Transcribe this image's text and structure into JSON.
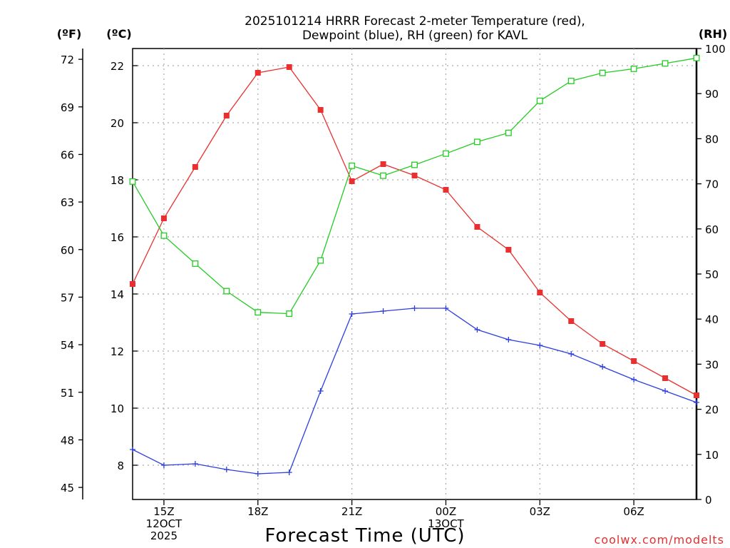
{
  "title_line1": "2025101214 HRRR Forecast 2-meter Temperature (red),",
  "title_line2": "Dewpoint (blue), RH (green) for KAVL",
  "unit_f": "(ºF)",
  "unit_c": "(ºC)",
  "unit_rh": "(RH)",
  "x_axis_label": "Forecast Time (UTC)",
  "credit": "coolwx.com/modelts",
  "colors": {
    "temperature": "#e83030",
    "dewpoint": "#2c3ee0",
    "rh": "#22cc22"
  },
  "chart_data": {
    "type": "line",
    "title": "2025101214 HRRR Forecast 2-meter Temperature (red), Dewpoint (blue), RH (green) for KAVL",
    "xlabel": "Forecast Time (UTC)",
    "x_hours": [
      14,
      15,
      16,
      17,
      18,
      19,
      20,
      21,
      22,
      23,
      24,
      25,
      26,
      27,
      28,
      29,
      30,
      31,
      32
    ],
    "x_ticks": [
      {
        "hour": 15,
        "lines": [
          "15Z",
          "12OCT",
          "2025"
        ]
      },
      {
        "hour": 18,
        "lines": [
          "18Z"
        ]
      },
      {
        "hour": 21,
        "lines": [
          "21Z"
        ]
      },
      {
        "hour": 24,
        "lines": [
          "00Z",
          "13OCT"
        ]
      },
      {
        "hour": 27,
        "lines": [
          "03Z"
        ]
      },
      {
        "hour": 30,
        "lines": [
          "06Z"
        ]
      }
    ],
    "xlim": [
      14,
      32
    ],
    "left_axis_c": {
      "label": "(ºC)",
      "range": [
        6.8,
        22.6
      ],
      "ticks": [
        8,
        10,
        12,
        14,
        16,
        18,
        20,
        22
      ]
    },
    "left_axis_f": {
      "label": "(ºF)",
      "ticks": [
        45,
        48,
        51,
        54,
        57,
        60,
        63,
        66,
        69,
        72
      ]
    },
    "right_axis_rh": {
      "label": "(RH)",
      "range": [
        0,
        100
      ],
      "ticks": [
        0,
        10,
        20,
        30,
        40,
        50,
        60,
        70,
        80,
        90,
        100
      ]
    },
    "series": [
      {
        "name": "Temperature",
        "axis": "c",
        "color": "#e83030",
        "marker": "filled-square",
        "values": [
          14.35,
          16.65,
          18.45,
          20.25,
          21.75,
          21.95,
          20.45,
          17.95,
          18.55,
          18.15,
          17.65,
          16.35,
          15.55,
          14.05,
          13.05,
          12.25,
          11.65,
          11.05,
          10.45
        ]
      },
      {
        "name": "Dewpoint",
        "axis": "c",
        "color": "#2c3ee0",
        "marker": "plus",
        "values": [
          8.55,
          8.0,
          8.05,
          7.85,
          7.7,
          7.75,
          10.6,
          13.3,
          13.4,
          13.5,
          13.5,
          12.75,
          12.4,
          12.2,
          11.9,
          11.45,
          11.0,
          10.6,
          10.2
        ]
      },
      {
        "name": "RH",
        "axis": "rh",
        "color": "#22cc22",
        "marker": "open-square",
        "values": [
          70.5,
          58.5,
          52.3,
          46.2,
          41.5,
          41.2,
          53.0,
          74.0,
          71.8,
          74.2,
          76.7,
          79.3,
          81.3,
          88.4,
          92.8,
          94.6,
          95.5,
          96.7,
          97.9
        ]
      }
    ]
  }
}
